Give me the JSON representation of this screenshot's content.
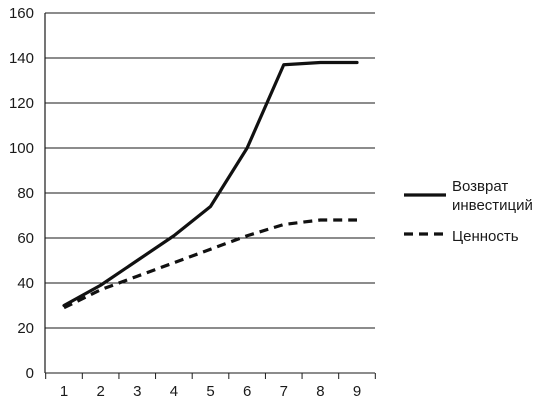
{
  "chart_data": {
    "type": "line",
    "title": "",
    "xlabel": "",
    "ylabel": "",
    "x": [
      1,
      2,
      3,
      4,
      5,
      6,
      7,
      8,
      9
    ],
    "ylim": [
      0,
      160
    ],
    "yticks": [
      0,
      20,
      40,
      60,
      80,
      100,
      120,
      140,
      160
    ],
    "xticks": [
      1,
      2,
      3,
      4,
      5,
      6,
      7,
      8,
      9
    ],
    "grid": "horizontal",
    "legend_position": "right",
    "series": [
      {
        "name": "Возврат инвестиций",
        "name_lines": [
          "Возврат",
          "инвестиций"
        ],
        "style": "solid",
        "color": "#111111",
        "values": [
          30,
          39,
          50,
          61,
          74,
          100,
          137,
          138,
          138
        ]
      },
      {
        "name": "Ценность",
        "name_lines": [
          "Ценность"
        ],
        "style": "dashed",
        "color": "#111111",
        "values": [
          29,
          37,
          43,
          49,
          55,
          61,
          66,
          68,
          68
        ]
      }
    ]
  }
}
